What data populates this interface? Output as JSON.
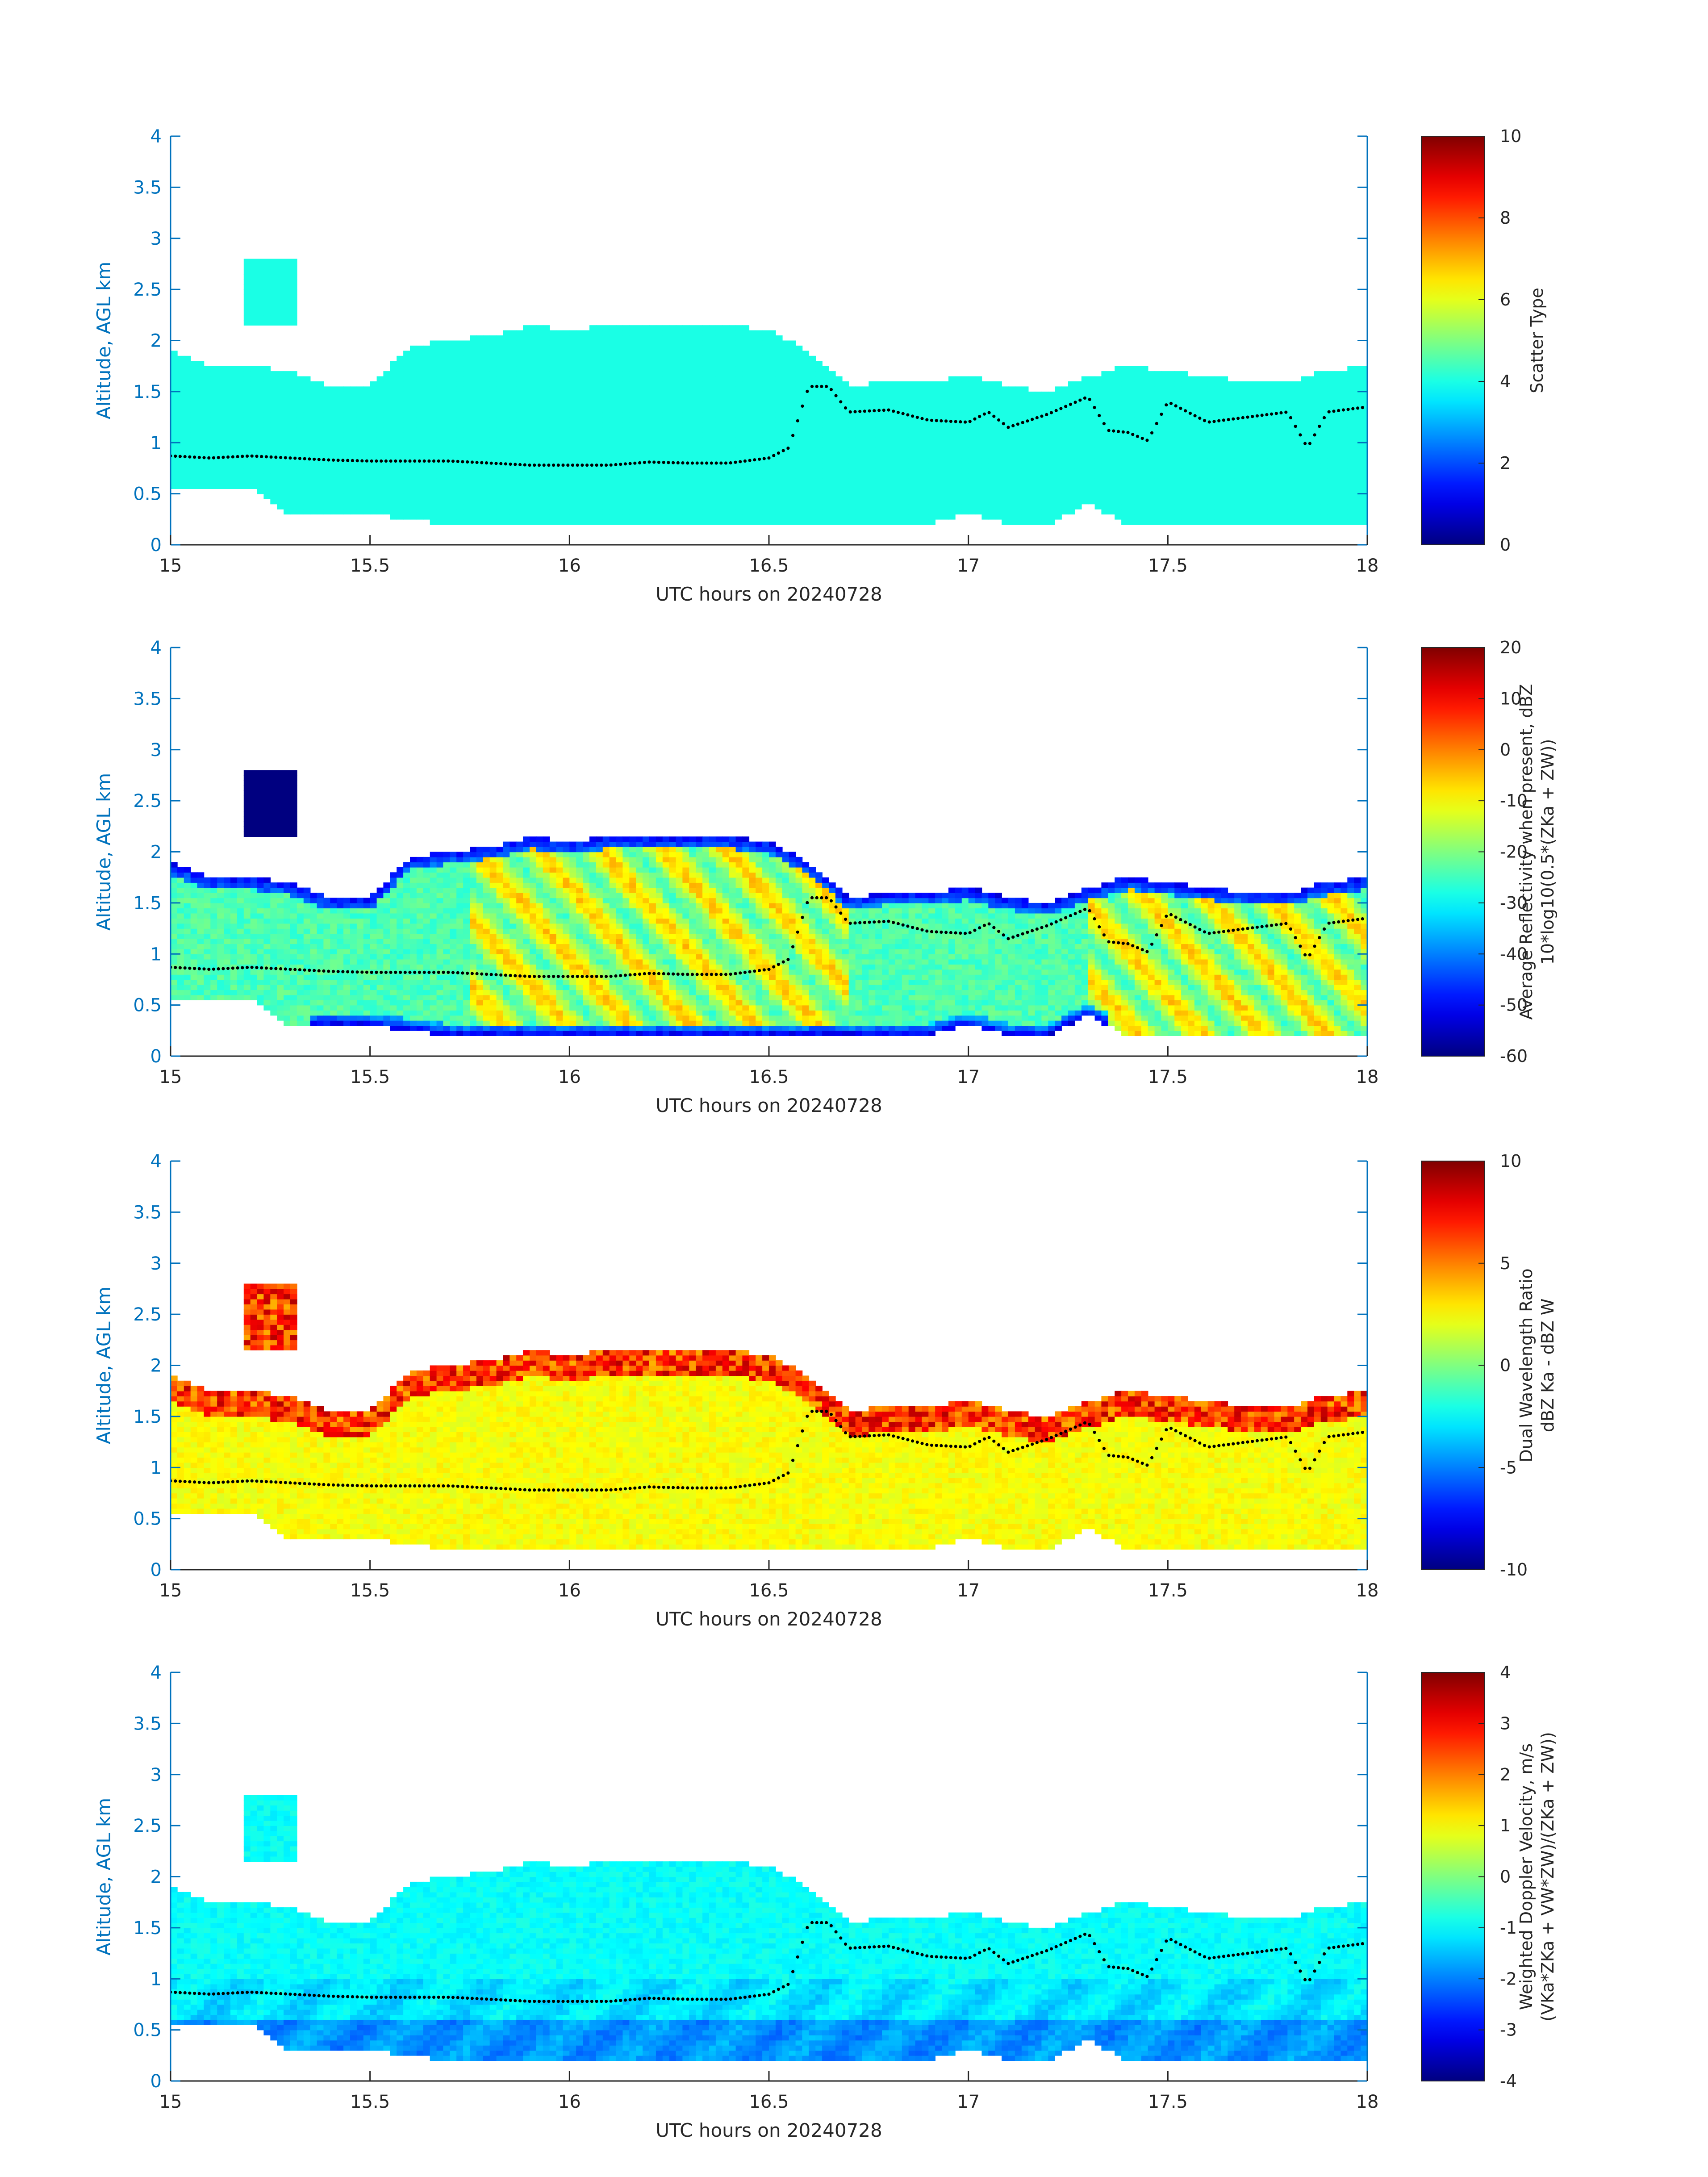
{
  "colors": {
    "background": "#ffffff",
    "axis_left": "#0072BD",
    "axis_bottom": "#262626",
    "scatter_type_fill": "#2ef7d9",
    "melting_layer_dots": "#000000"
  },
  "chart_data": [
    {
      "type": "heatmap",
      "name": "scatter-type",
      "xlabel": "UTC hours on 20240728",
      "ylabel": "Altitude, AGL km",
      "xlim": [
        15,
        18
      ],
      "ylim": [
        0,
        4
      ],
      "xticks": [
        "15",
        "15.5",
        "16",
        "16.5",
        "17",
        "17.5",
        "18"
      ],
      "yticks": [
        "0",
        "0.5",
        "1",
        "1.5",
        "2",
        "2.5",
        "3",
        "3.5",
        "4"
      ],
      "colorbar": {
        "label_lines": [
          "Scatter Type"
        ],
        "range": [
          0,
          10
        ],
        "ticks": [
          "0",
          "2",
          "4",
          "6",
          "8",
          "10"
        ],
        "colormap": "jet"
      },
      "field": "scatter"
    },
    {
      "type": "heatmap",
      "name": "reflectivity",
      "xlabel": "UTC hours on 20240728",
      "ylabel": "Altitude, AGL km",
      "xlim": [
        15,
        18
      ],
      "ylim": [
        0,
        4
      ],
      "xticks": [
        "15",
        "15.5",
        "16",
        "16.5",
        "17",
        "17.5",
        "18"
      ],
      "yticks": [
        "0",
        "0.5",
        "1",
        "1.5",
        "2",
        "2.5",
        "3",
        "3.5",
        "4"
      ],
      "colorbar": {
        "label_lines": [
          "Average Reflectivity when present, dBZ",
          "10*log10(0.5*(ZKa + ZW))"
        ],
        "range": [
          -60,
          20
        ],
        "ticks": [
          "-60",
          "-50",
          "-40",
          "-30",
          "-20",
          "-10",
          "0",
          "10",
          "20"
        ],
        "colormap": "jet"
      },
      "field": "reflectivity"
    },
    {
      "type": "heatmap",
      "name": "dual-wavelength-ratio",
      "xlabel": "UTC hours on 20240728",
      "ylabel": "Altitude, AGL km",
      "xlim": [
        15,
        18
      ],
      "ylim": [
        0,
        4
      ],
      "xticks": [
        "15",
        "15.5",
        "16",
        "16.5",
        "17",
        "17.5",
        "18"
      ],
      "yticks": [
        "0",
        "0.5",
        "1",
        "1.5",
        "2",
        "2.5",
        "3",
        "3.5",
        "4"
      ],
      "colorbar": {
        "label_lines": [
          "Dual Wavelength Ratio",
          "dBZ Ka - dBZ W"
        ],
        "range": [
          -10,
          10
        ],
        "ticks": [
          "-10",
          "-5",
          "0",
          "5",
          "10"
        ],
        "colormap": "jet"
      },
      "field": "dwr"
    },
    {
      "type": "heatmap",
      "name": "doppler-velocity",
      "xlabel": "UTC hours on 20240728",
      "ylabel": "Altitude, AGL km",
      "xlim": [
        15,
        18
      ],
      "ylim": [
        0,
        4
      ],
      "xticks": [
        "15",
        "15.5",
        "16",
        "16.5",
        "17",
        "17.5",
        "18"
      ],
      "yticks": [
        "0",
        "0.5",
        "1",
        "1.5",
        "2",
        "2.5",
        "3",
        "3.5",
        "4"
      ],
      "colorbar": {
        "label_lines": [
          "Weighted Doppler Velocity, m/s",
          "(VKa*ZKa + VW*ZW)/(ZKa + ZW))"
        ],
        "range": [
          -4,
          4
        ],
        "ticks": [
          "-4",
          "-3",
          "-2",
          "-1",
          "0",
          "1",
          "2",
          "3",
          "4"
        ],
        "colormap": "jet"
      },
      "field": "velocity"
    }
  ],
  "cloud_profile": {
    "times": [
      15.0,
      15.1,
      15.2,
      15.3,
      15.4,
      15.5,
      15.6,
      15.7,
      15.8,
      15.9,
      16.0,
      16.1,
      16.2,
      16.3,
      16.4,
      16.5,
      16.6,
      16.7,
      16.8,
      16.9,
      17.0,
      17.1,
      17.2,
      17.3,
      17.4,
      17.5,
      17.6,
      17.7,
      17.8,
      17.9,
      18.0
    ],
    "top_km": [
      1.9,
      1.75,
      1.75,
      1.7,
      1.55,
      1.55,
      1.95,
      2.0,
      2.05,
      2.15,
      2.1,
      2.15,
      2.15,
      2.15,
      2.15,
      2.1,
      1.9,
      1.55,
      1.6,
      1.6,
      1.65,
      1.55,
      1.5,
      1.65,
      1.75,
      1.7,
      1.65,
      1.6,
      1.6,
      1.7,
      1.75
    ],
    "base_km": [
      0.55,
      0.55,
      0.55,
      0.3,
      0.3,
      0.3,
      0.25,
      0.2,
      0.2,
      0.2,
      0.2,
      0.2,
      0.2,
      0.2,
      0.2,
      0.2,
      0.2,
      0.2,
      0.2,
      0.2,
      0.3,
      0.2,
      0.2,
      0.4,
      0.2,
      0.2,
      0.2,
      0.2,
      0.2,
      0.2,
      0.2
    ],
    "upper_patch": {
      "t0": 15.18,
      "t1": 15.32,
      "bottom_km": 2.15,
      "top_km": 2.8
    }
  },
  "melting_layer": {
    "times": [
      15.0,
      15.1,
      15.2,
      15.3,
      15.35,
      15.4,
      15.5,
      15.6,
      15.7,
      15.8,
      15.9,
      16.0,
      16.1,
      16.2,
      16.3,
      16.4,
      16.5,
      16.55,
      16.6,
      16.65,
      16.7,
      16.8,
      16.9,
      17.0,
      17.05,
      17.1,
      17.2,
      17.3,
      17.35,
      17.4,
      17.45,
      17.5,
      17.6,
      17.7,
      17.8,
      17.85,
      17.9,
      18.0
    ],
    "altitude_km": [
      0.87,
      0.85,
      0.87,
      0.85,
      0.84,
      0.83,
      0.82,
      0.82,
      0.82,
      0.8,
      0.78,
      0.78,
      0.78,
      0.81,
      0.8,
      0.8,
      0.85,
      0.95,
      1.55,
      1.55,
      1.3,
      1.32,
      1.22,
      1.2,
      1.3,
      1.15,
      1.28,
      1.45,
      1.12,
      1.1,
      1.02,
      1.4,
      1.2,
      1.25,
      1.3,
      0.95,
      1.3,
      1.35
    ]
  }
}
